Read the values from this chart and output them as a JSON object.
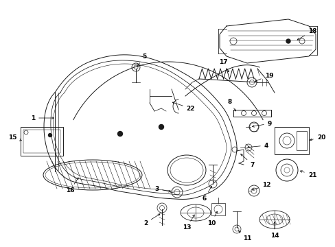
{
  "bg_color": "#ffffff",
  "line_color": "#1a1a1a",
  "figsize": [
    4.89,
    3.6
  ],
  "dpi": 100,
  "lw": 0.7
}
